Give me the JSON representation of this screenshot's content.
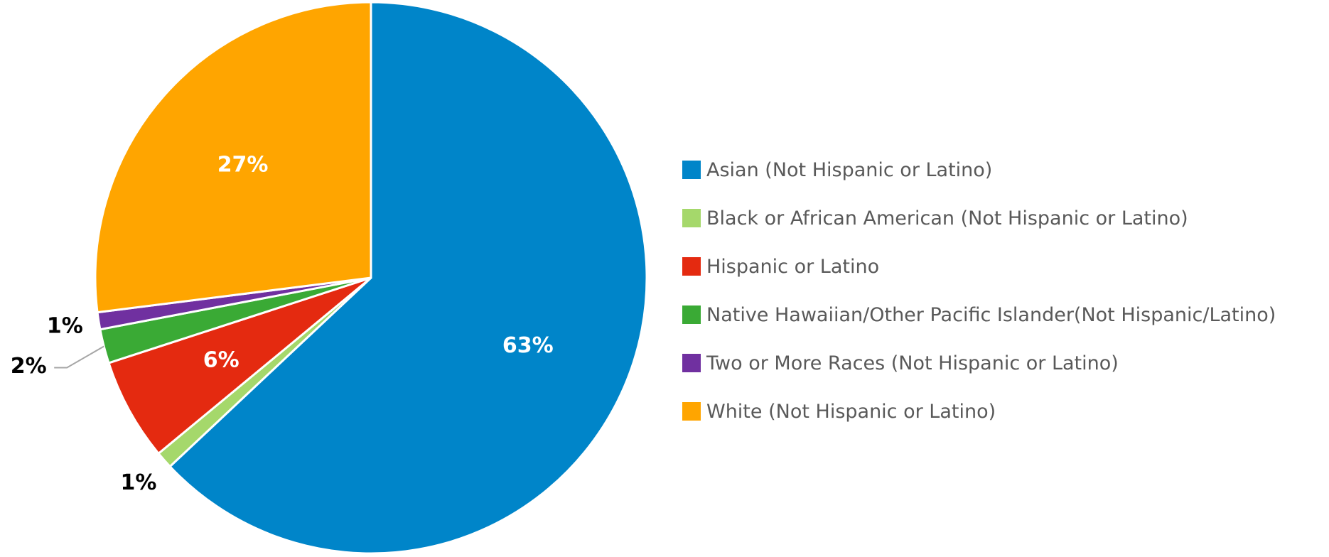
{
  "chart_data": {
    "type": "pie",
    "title": "",
    "start_angle_deg": 0,
    "direction": "clockwise",
    "legend_position": "right",
    "slices": [
      {
        "name": "Asian (Not Hispanic or Latino)",
        "value": 63,
        "label": "63%",
        "color": "#0085C9",
        "label_placement": "inside"
      },
      {
        "name": "Black or African American (Not Hispanic or Latino)",
        "value": 1,
        "label": "1%",
        "color": "#A5D86B",
        "label_placement": "outside"
      },
      {
        "name": "Hispanic or Latino",
        "value": 6,
        "label": "6%",
        "color": "#E42A10",
        "label_placement": "inside"
      },
      {
        "name": "Native Hawaiian/Other Pacific Islander(Not Hispanic/Latino)",
        "value": 2,
        "label": "2%",
        "color": "#3AAA35",
        "label_placement": "outside-leader"
      },
      {
        "name": "Two or More Races (Not Hispanic or Latino)",
        "value": 1,
        "label": "1%",
        "color": "#7030A0",
        "label_placement": "outside"
      },
      {
        "name": "White (Not Hispanic or Latino)",
        "value": 27,
        "label": "27%",
        "color": "#FFA500",
        "label_placement": "inside"
      }
    ]
  }
}
